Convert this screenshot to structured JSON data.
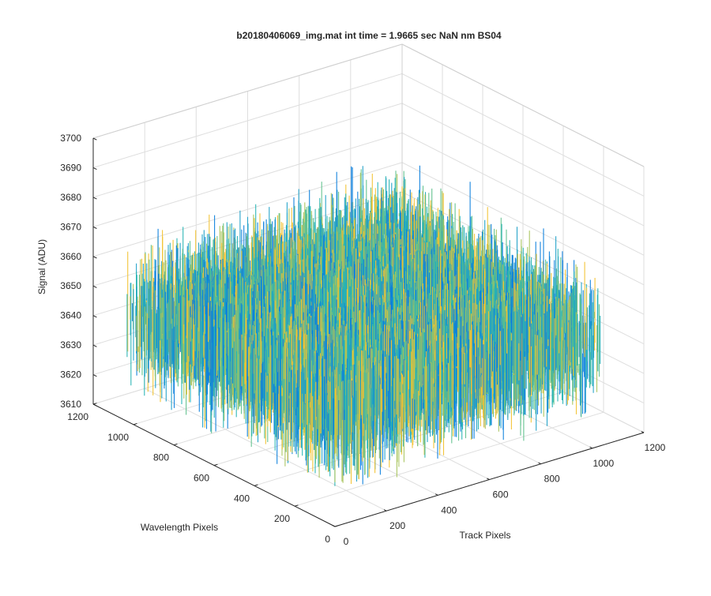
{
  "chart_data": {
    "type": "surface",
    "title": "b20180406069_img.mat int time = 1.9665 sec  NaN nm BS04",
    "zlabel": "Signal (ADU)",
    "xlabel": "Track Pixels",
    "ylabel": "Wavelength Pixels",
    "xlim": [
      0,
      1200
    ],
    "ylim": [
      0,
      1200
    ],
    "zlim": [
      3610,
      3700
    ],
    "xticks": [
      "0",
      "200",
      "400",
      "600",
      "800",
      "1000",
      "1200"
    ],
    "yticks": [
      "0",
      "200",
      "400",
      "600",
      "800",
      "1000",
      "1200"
    ],
    "zticks": [
      "3610",
      "3620",
      "3630",
      "3640",
      "3650",
      "3660",
      "3670",
      "3680",
      "3690",
      "3700"
    ],
    "data_extent": {
      "track_pixels": [
        0,
        1024
      ],
      "wavelength_pixels": [
        0,
        1024
      ]
    },
    "signal_mean": 3646,
    "signal_range": [
      3615,
      3690
    ],
    "grid": true,
    "colormap": [
      "#0b7fdc",
      "#1fa0c8",
      "#27b3b3",
      "#5fc18c",
      "#a8c45c",
      "#f2c232"
    ]
  }
}
